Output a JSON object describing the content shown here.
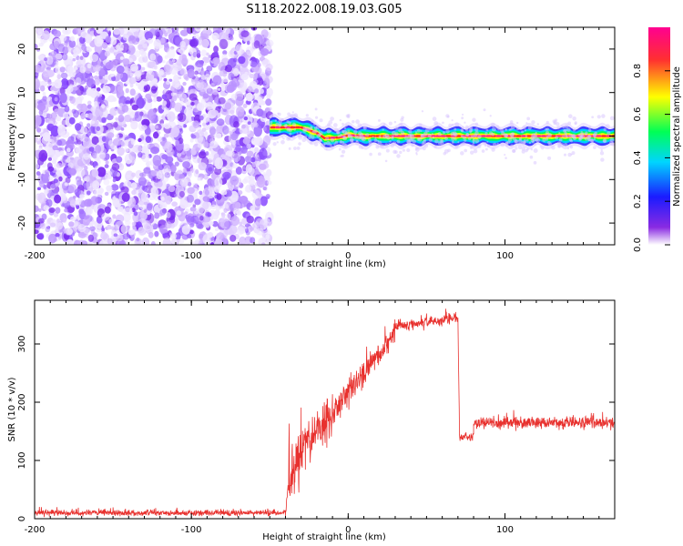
{
  "figure": {
    "title": "S118.2022.008.19.03.G05"
  },
  "chart_data": [
    {
      "type": "heatmap",
      "xlabel": "Height of straight line (km)",
      "ylabel": "Frequency (Hz)",
      "xlim": [
        -200,
        170
      ],
      "ylim": [
        -25,
        25
      ],
      "xticks": [
        -200,
        -100,
        0,
        100
      ],
      "yticks": [
        -20,
        -10,
        0,
        10,
        20
      ],
      "colorbar": {
        "label": "Normalized spectral amplitude",
        "range": [
          0,
          1
        ],
        "ticks": [
          "0.0",
          "0.2",
          "0.4",
          "0.6",
          "0.8"
        ],
        "colormap": [
          "#ffffff",
          "#8a2be2",
          "#1b1bff",
          "#00d5ff",
          "#00ff55",
          "#ffff00",
          "#ff3030",
          "#ff0090"
        ]
      },
      "noise_region": {
        "x_range": [
          -200,
          -50
        ],
        "frequency_range": [
          -25,
          25
        ]
      },
      "signal_band": {
        "points": [
          {
            "x": -50,
            "frequency": 2.0
          },
          {
            "x": -40,
            "frequency": 2.0
          },
          {
            "x": -30,
            "frequency": 2.0
          },
          {
            "x": -20,
            "frequency": 0.7
          },
          {
            "x": -15,
            "frequency": -0.5
          },
          {
            "x": -5,
            "frequency": -0.3
          },
          {
            "x": 0,
            "frequency": 0.2
          },
          {
            "x": 10,
            "frequency": 0.0
          },
          {
            "x": 50,
            "frequency": 0.0
          },
          {
            "x": 100,
            "frequency": 0.0
          },
          {
            "x": 170,
            "frequency": 0.0
          }
        ]
      },
      "grid": false
    },
    {
      "type": "line",
      "xlabel": "Height of straight line (km)",
      "ylabel": "SNR (10 * v/v)",
      "xlim": [
        -200,
        170
      ],
      "ylim": [
        0,
        375
      ],
      "xticks": [
        -200,
        -100,
        0,
        100
      ],
      "yticks": [
        0,
        100,
        200,
        300
      ],
      "color": "#e8312e",
      "segments": [
        {
          "x": [
            -200,
            -40
          ],
          "mean": [
            10,
            10
          ],
          "noise": 5
        },
        {
          "x": [
            -40,
            -38
          ],
          "mean": [
            10,
            60
          ],
          "noise": 10
        },
        {
          "x": [
            -38,
            -30
          ],
          "mean": [
            60,
            120
          ],
          "noise": 50
        },
        {
          "x": [
            -30,
            -10
          ],
          "mean": [
            120,
            180
          ],
          "noise": 40
        },
        {
          "x": [
            -10,
            10
          ],
          "mean": [
            180,
            250
          ],
          "noise": 25
        },
        {
          "x": [
            10,
            30
          ],
          "mean": [
            250,
            320
          ],
          "noise": 20
        },
        {
          "x": [
            30,
            70
          ],
          "mean": [
            330,
            345
          ],
          "noise": 10
        },
        {
          "x": [
            70,
            71
          ],
          "mean": [
            345,
            150
          ],
          "noise": 10
        },
        {
          "x": [
            71,
            80
          ],
          "mean": [
            140,
            140
          ],
          "noise": 8
        },
        {
          "x": [
            80,
            170
          ],
          "mean": [
            165,
            165
          ],
          "noise": 10
        }
      ],
      "grid": false
    }
  ]
}
